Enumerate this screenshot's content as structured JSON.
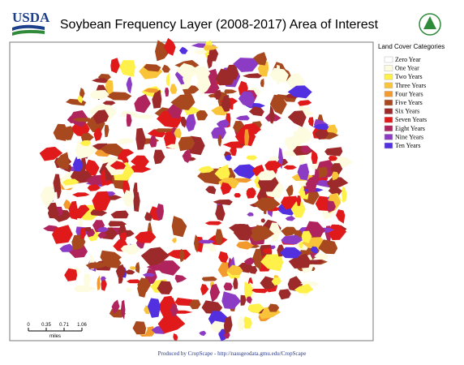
{
  "header": {
    "logo": "USDA",
    "title": "Soybean Frequency Layer (2008-2017) Area of Interest"
  },
  "legend": {
    "title": "Land Cover Categories",
    "items": [
      {
        "label": "Zero Year",
        "color": "#ffffff"
      },
      {
        "label": "One Year",
        "color": "#fdfbe0"
      },
      {
        "label": "Two Years",
        "color": "#fff04a"
      },
      {
        "label": "Three Years",
        "color": "#f9c43a"
      },
      {
        "label": "Four Years",
        "color": "#f29a2e"
      },
      {
        "label": "Five Years",
        "color": "#a8481e"
      },
      {
        "label": "Six Years",
        "color": "#9c2a2a"
      },
      {
        "label": "Seven Years",
        "color": "#e01a1a"
      },
      {
        "label": "Eight Years",
        "color": "#b0245e"
      },
      {
        "label": "Nine Years",
        "color": "#8c3cc4"
      },
      {
        "label": "Ten Years",
        "color": "#5230e0"
      }
    ]
  },
  "scale_bar": {
    "labels": [
      "0",
      "0.35",
      "0.71",
      "1.06"
    ],
    "unit": "miles"
  },
  "footer": "Produced by CropScape - http://nassgeodata.gmu.edu/CropScape"
}
